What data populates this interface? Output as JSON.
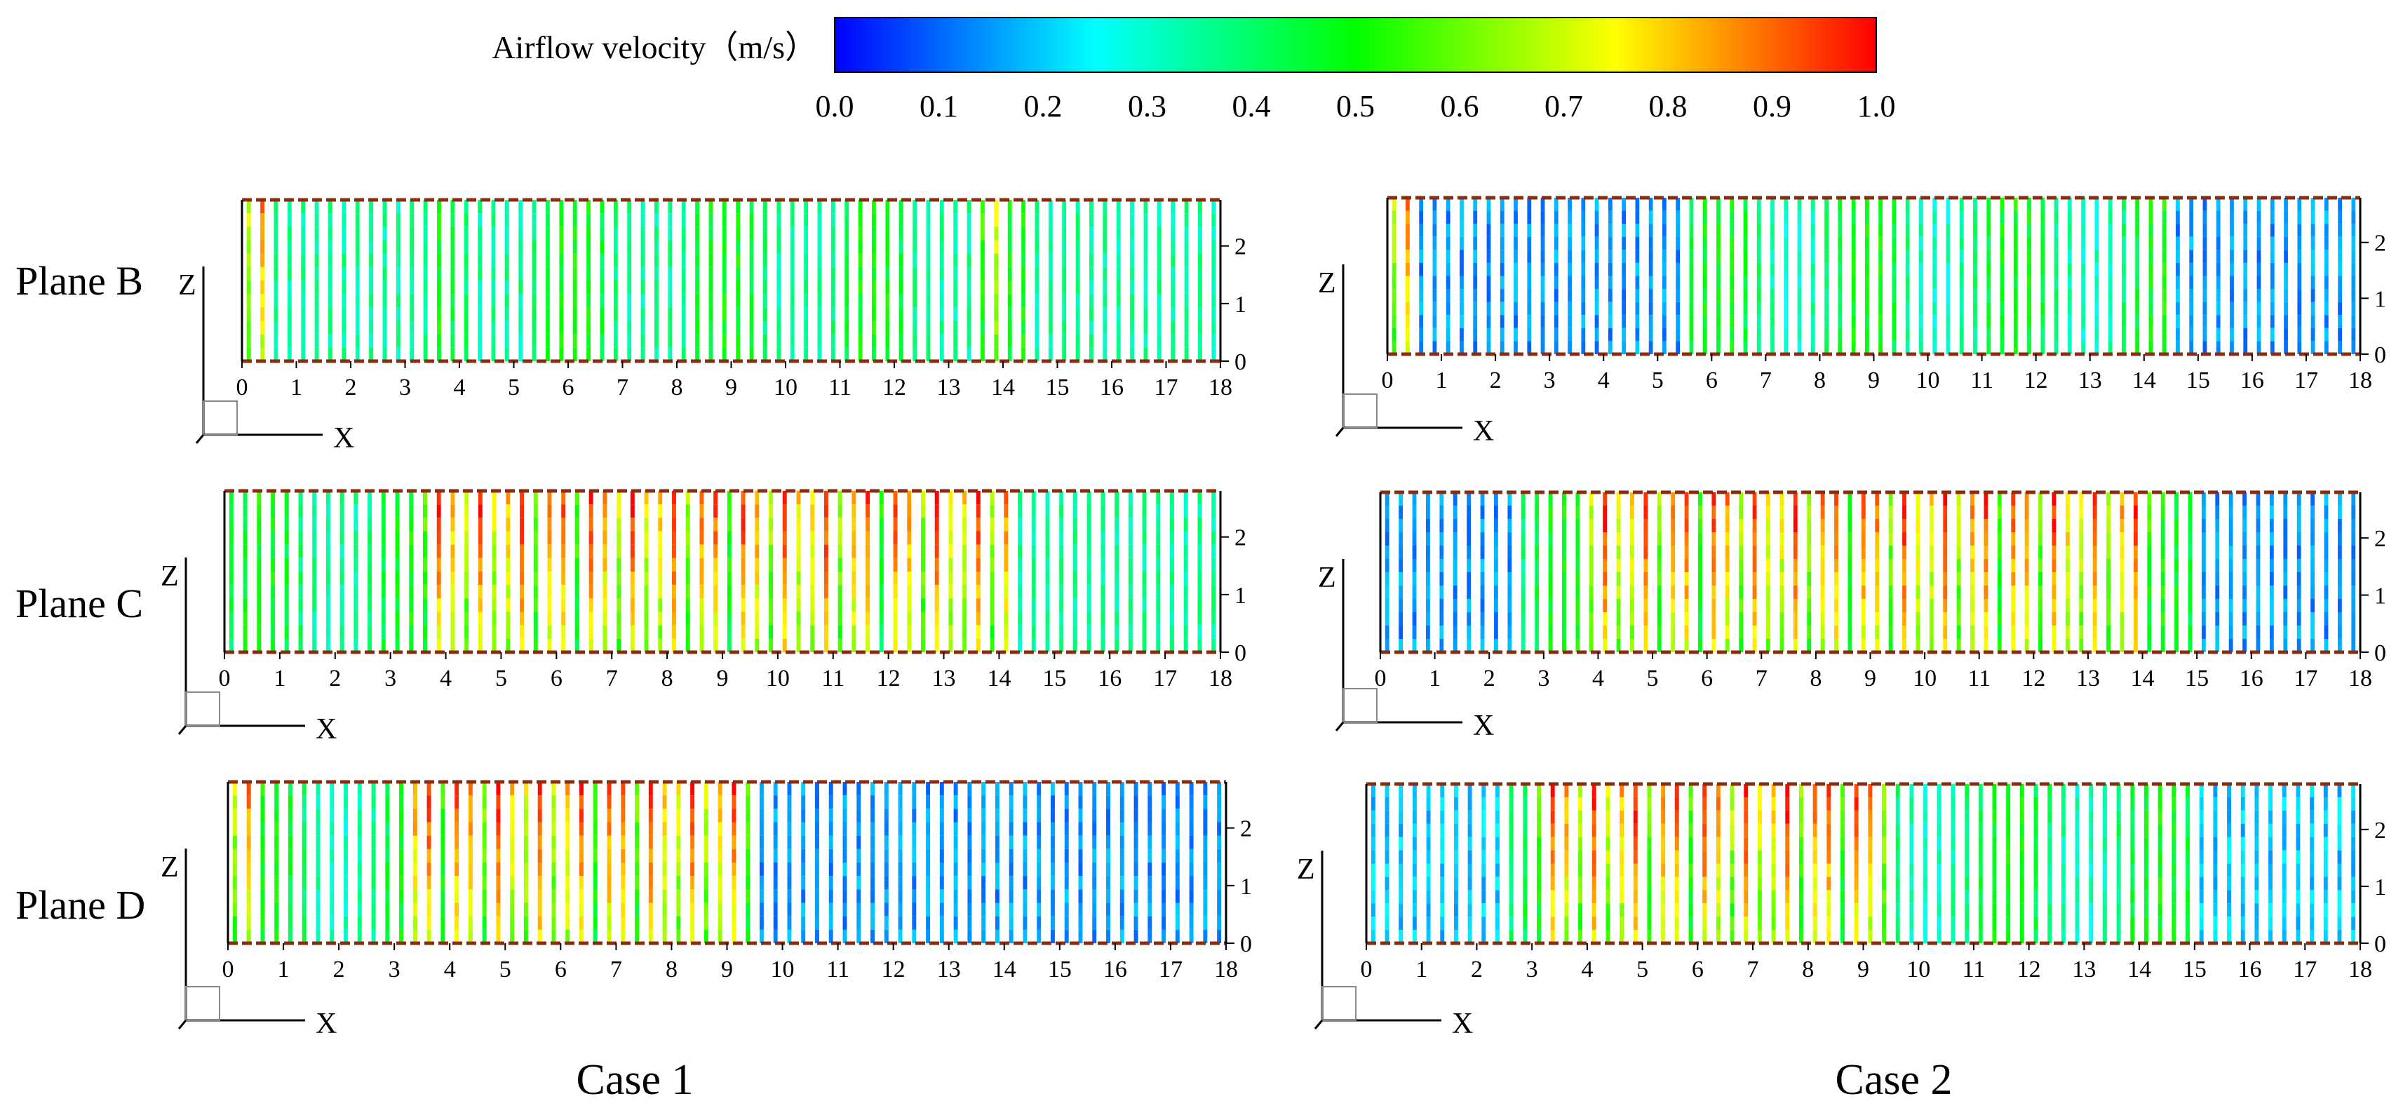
{
  "chart_data": {
    "type": "heatmap",
    "colorbar": {
      "label": "Airflow velocity（m/s）",
      "min": 0.0,
      "max": 1.0,
      "ticks": [
        "0.0",
        "0.1",
        "0.2",
        "0.3",
        "0.4",
        "0.5",
        "0.6",
        "0.7",
        "0.8",
        "0.9",
        "1.0"
      ],
      "colors": [
        "#0000ff",
        "#0080ff",
        "#00ffff",
        "#00ff80",
        "#00ff00",
        "#80ff00",
        "#ffff00",
        "#ff8000",
        "#ff0000"
      ]
    },
    "x_ticks": [
      "0",
      "1",
      "2",
      "3",
      "4",
      "5",
      "6",
      "7",
      "8",
      "9",
      "10",
      "11",
      "12",
      "13",
      "14",
      "15",
      "16",
      "17",
      "18"
    ],
    "z_ticks": [
      "0",
      "1",
      "2"
    ],
    "xlim": [
      0,
      18
    ],
    "zlim": [
      0,
      2.8
    ],
    "x_axis_label": "X",
    "z_axis_label": "Z",
    "columns": [
      "Case 1",
      "Case 2"
    ],
    "rows": [
      "Plane B",
      "Plane C",
      "Plane D"
    ],
    "panels": [
      {
        "case": "Case 1",
        "plane": "Plane B",
        "high_velocity_regions": [
          {
            "x": [
              0,
              0.4
            ],
            "level": 0.9
          },
          {
            "x": [
              13.5,
              14.2
            ],
            "level": 0.75
          }
        ],
        "background_level": 0.35,
        "mid_level_zone": [
          3.5,
          14.5
        ]
      },
      {
        "case": "Case 1",
        "plane": "Plane C",
        "high_velocity_regions": [
          {
            "x": [
              3.6,
              14.3
            ],
            "level": 1.0
          }
        ],
        "background_level": 0.35,
        "mid_level_zone": [
          0,
          3.5
        ]
      },
      {
        "case": "Case 1",
        "plane": "Plane D",
        "high_velocity_regions": [
          {
            "x": [
              3.2,
              9.6
            ],
            "level": 1.0
          },
          {
            "x": [
              0,
              0.6
            ],
            "level": 0.9
          }
        ],
        "background_level": 0.15,
        "mid_level_zone": [
          0,
          3.2
        ]
      },
      {
        "case": "Case 2",
        "plane": "Plane B",
        "high_velocity_regions": [
          {
            "x": [
              0,
              0.5
            ],
            "level": 0.9
          }
        ],
        "background_level": 0.15,
        "mid_level_zone": [
          5.5,
          14.5
        ]
      },
      {
        "case": "Case 2",
        "plane": "Plane C",
        "high_velocity_regions": [
          {
            "x": [
              3.8,
              14.3
            ],
            "level": 1.0
          }
        ],
        "background_level": 0.15,
        "mid_level_zone": [
          2.5,
          15
        ]
      },
      {
        "case": "Case 2",
        "plane": "Plane D",
        "high_velocity_regions": [
          {
            "x": [
              3.1,
              9.5
            ],
            "level": 1.0
          }
        ],
        "background_level": 0.2,
        "mid_level_zone": [
          2.5,
          15
        ]
      }
    ]
  }
}
